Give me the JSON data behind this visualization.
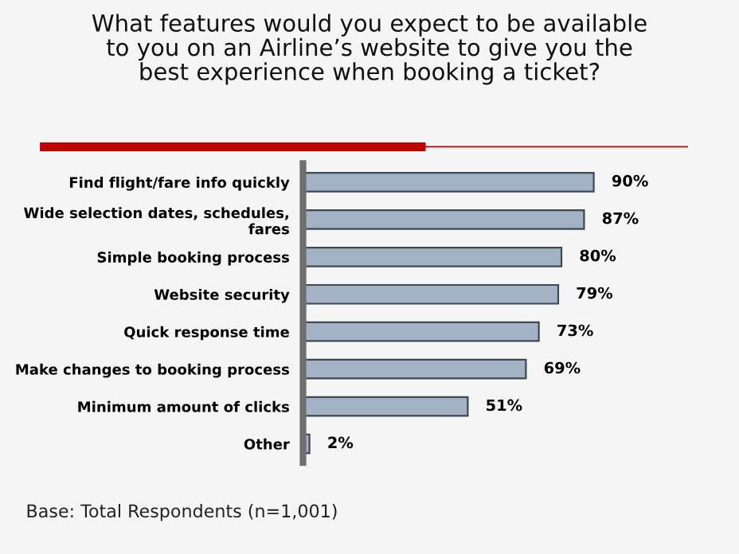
{
  "chart_data": {
    "type": "bar",
    "orientation": "horizontal",
    "title": "What features would you expect to be available\nto you on an Airline’s website to give you the\nbest experience when booking a ticket?",
    "categories": [
      "Find flight/fare info quickly",
      "Wide selection dates, schedules,\nfares",
      "Simple booking process",
      "Website security",
      "Quick response time",
      "Make changes to booking process",
      "Minimum amount of clicks",
      "Other"
    ],
    "values": [
      90,
      87,
      80,
      79,
      73,
      69,
      51,
      2
    ],
    "value_labels": [
      "90%",
      "87%",
      "80%",
      "79%",
      "73%",
      "69%",
      "51%",
      "2%"
    ],
    "color": "#a3b3c6",
    "annotations": [
      "Base: Total Respondents (n=1,001)"
    ]
  }
}
